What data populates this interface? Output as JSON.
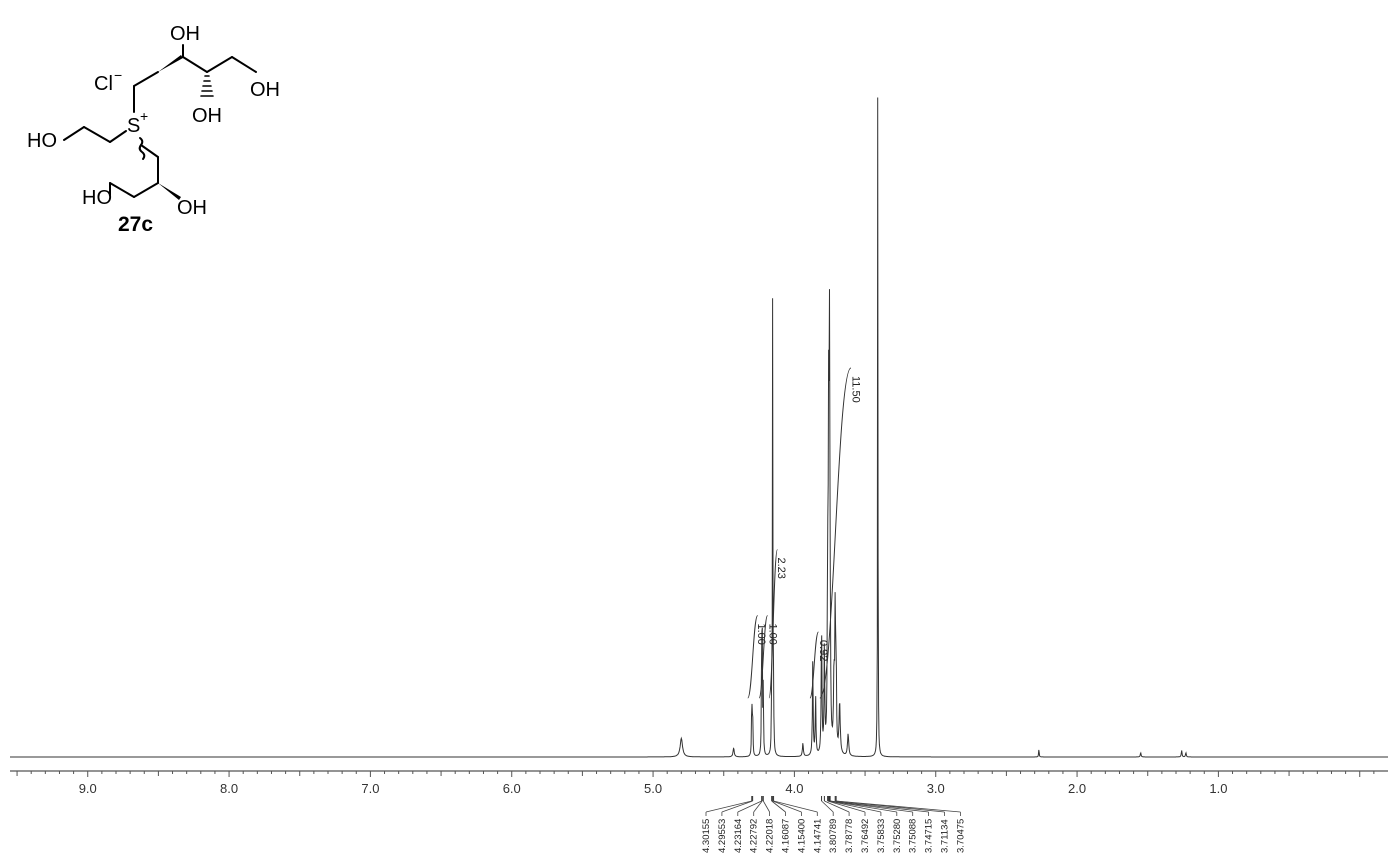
{
  "compound": {
    "label": "27c",
    "counter_ion": "Cl",
    "counter_ion_charge": "−",
    "sulfonium_atom": "S",
    "sulfonium_charge": "+",
    "hydroxyls": {
      "oh_top": "OH",
      "oh_right": "OH",
      "oh_mid": "OH",
      "ho_left": "HO",
      "ho_bottom": "HO",
      "oh_bottom": "OH"
    }
  },
  "chart_data": {
    "type": "line",
    "title": "",
    "xlabel": "",
    "ylabel": "",
    "x_axis": {
      "reversed": true,
      "xlim": [
        9.55,
        -0.2
      ],
      "major_ticks": [
        9.0,
        8.0,
        7.0,
        6.0,
        5.0,
        4.0,
        3.0,
        2.0,
        1.0
      ],
      "tick_labels": [
        "9.0",
        "8.0",
        "7.0",
        "6.0",
        "5.0",
        "4.0",
        "3.0",
        "2.0",
        "1.0"
      ]
    },
    "grid": false,
    "ylim": [
      0,
      100
    ],
    "peaks": [
      {
        "ppm": 4.8,
        "height": 2.5,
        "width": 0.01
      },
      {
        "ppm": 4.43,
        "height": 1.2,
        "width": 0.005
      },
      {
        "ppm": 4.30155,
        "height": 8.0,
        "width": 0.0022
      },
      {
        "ppm": 4.29553,
        "height": 6.5,
        "width": 0.0022
      },
      {
        "ppm": 4.23164,
        "height": 14.0,
        "width": 0.002
      },
      {
        "ppm": 4.22792,
        "height": 16.5,
        "width": 0.002
      },
      {
        "ppm": 4.22018,
        "height": 10.0,
        "width": 0.002
      },
      {
        "ppm": 4.16087,
        "height": 9.0,
        "width": 0.002
      },
      {
        "ppm": 4.154,
        "height": 60.0,
        "width": 0.0018
      },
      {
        "ppm": 4.14741,
        "height": 8.0,
        "width": 0.002
      },
      {
        "ppm": 3.94,
        "height": 1.8,
        "width": 0.004
      },
      {
        "ppm": 3.87,
        "height": 13.0,
        "width": 0.003
      },
      {
        "ppm": 3.85,
        "height": 8.0,
        "width": 0.003
      },
      {
        "ppm": 3.80789,
        "height": 18.0,
        "width": 0.003
      },
      {
        "ppm": 3.78778,
        "height": 14.0,
        "width": 0.003
      },
      {
        "ppm": 3.76492,
        "height": 21.0,
        "width": 0.003
      },
      {
        "ppm": 3.75833,
        "height": 39.0,
        "width": 0.003
      },
      {
        "ppm": 3.7528,
        "height": 30.0,
        "width": 0.003
      },
      {
        "ppm": 3.75088,
        "height": 26.0,
        "width": 0.003
      },
      {
        "ppm": 3.74715,
        "height": 12.0,
        "width": 0.003
      },
      {
        "ppm": 3.72,
        "height": 10.0,
        "width": 0.004
      },
      {
        "ppm": 3.71134,
        "height": 19.0,
        "width": 0.003
      },
      {
        "ppm": 3.70475,
        "height": 11.0,
        "width": 0.003
      },
      {
        "ppm": 3.68,
        "height": 7.0,
        "width": 0.005
      },
      {
        "ppm": 3.62,
        "height": 3.0,
        "width": 0.005
      },
      {
        "ppm": 3.41,
        "height": 100.0,
        "width": 0.0015
      },
      {
        "ppm": 2.27,
        "height": 1.2,
        "width": 0.002
      },
      {
        "ppm": 1.55,
        "height": 0.6,
        "width": 0.003
      },
      {
        "ppm": 1.26,
        "height": 0.9,
        "width": 0.003
      },
      {
        "ppm": 1.23,
        "height": 0.6,
        "width": 0.003
      }
    ],
    "integrals": [
      {
        "from": 4.33,
        "to": 4.26,
        "value": "1.00",
        "label_at": 4.3,
        "rise": 0.25
      },
      {
        "from": 4.25,
        "to": 4.19,
        "value": "1.00",
        "label_at": 4.22,
        "rise": 0.25
      },
      {
        "from": 4.18,
        "to": 4.12,
        "value": "2.23",
        "label_at": 4.16,
        "rise": 0.45
      },
      {
        "from": 3.89,
        "to": 3.83,
        "value": "0.92",
        "label_at": 3.86,
        "rise": 0.2
      },
      {
        "from": 3.82,
        "to": 3.6,
        "value": "11.50",
        "label_at": 3.63,
        "rise": 1.0
      }
    ],
    "peak_labels": [
      "4.30155",
      "4.29553",
      "4.23164",
      "4.22792",
      "4.22018",
      "4.16087",
      "4.15400",
      "4.14741",
      "3.80789",
      "3.78778",
      "3.76492",
      "3.75833",
      "3.75280",
      "3.75088",
      "3.74715",
      "3.71134",
      "3.70475"
    ],
    "peak_label_ppms": [
      4.30155,
      4.29553,
      4.23164,
      4.22792,
      4.22018,
      4.16087,
      4.154,
      4.14741,
      3.80789,
      3.78778,
      3.76492,
      3.75833,
      3.7528,
      3.75088,
      3.74715,
      3.71134,
      3.70475
    ]
  }
}
